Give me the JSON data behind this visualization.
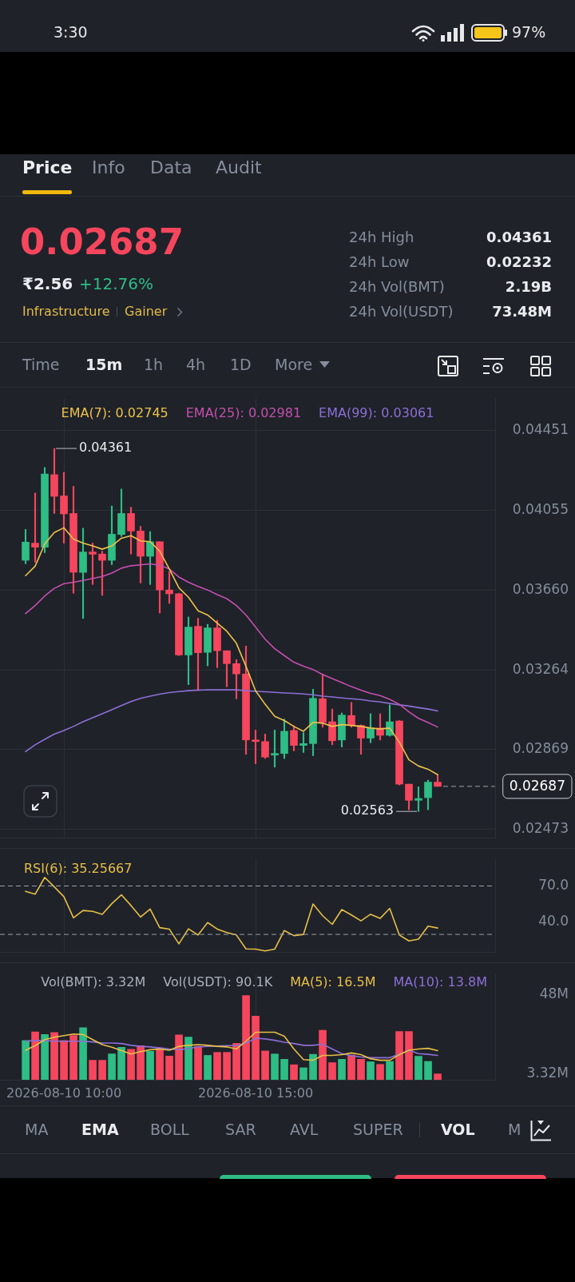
{
  "chart_data": [
    {
      "type": "other",
      "annotations": [
        "3:30",
        "97%",
        "Price",
        "Info",
        "Data",
        "Audit",
        "0.02687",
        "₹2.56",
        "+12.76%",
        "Infrastructure",
        "Gainer",
        "24h High",
        "0.04361",
        "24h Low",
        "0.02232",
        "24h Vol(BMT)",
        "2.19B",
        "24h Vol(USDT)",
        "73.48M",
        "Time",
        "15m",
        "1h",
        "4h",
        "1D",
        "More"
      ]
    },
    {
      "type": "candlestick",
      "x": [
        "2026-08-10T09:00",
        "2026-08-10T09:15",
        "2026-08-10T09:30",
        "2026-08-10T09:45",
        "2026-08-10T10:00",
        "2026-08-10T10:15",
        "2026-08-10T10:30",
        "2026-08-10T10:45",
        "2026-08-10T11:00",
        "2026-08-10T11:15",
        "2026-08-10T11:30",
        "2026-08-10T11:45",
        "2026-08-10T12:00",
        "2026-08-10T12:15",
        "2026-08-10T12:30",
        "2026-08-10T12:45",
        "2026-08-10T13:00",
        "2026-08-10T13:15",
        "2026-08-10T13:30",
        "2026-08-10T13:45",
        "2026-08-10T14:00",
        "2026-08-10T14:15",
        "2026-08-10T14:30",
        "2026-08-10T14:45",
        "2026-08-10T15:00",
        "2026-08-10T15:15",
        "2026-08-10T15:30",
        "2026-08-10T15:45",
        "2026-08-10T16:00",
        "2026-08-10T16:15",
        "2026-08-10T16:30",
        "2026-08-10T16:45",
        "2026-08-10T17:00",
        "2026-08-10T17:15",
        "2026-08-10T17:30",
        "2026-08-10T17:45",
        "2026-08-10T18:00",
        "2026-08-10T18:15",
        "2026-08-10T18:30",
        "2026-08-10T18:45",
        "2026-08-10T19:00",
        "2026-08-10T19:15",
        "2026-08-10T19:30",
        "2026-08-10T19:45"
      ],
      "ohlc": [
        [
          0.03807,
          0.0396,
          0.0379,
          0.03897
        ],
        [
          0.03892,
          0.0414,
          0.03798,
          0.03872
        ],
        [
          0.03872,
          0.04267,
          0.03845,
          0.04234
        ],
        [
          0.04231,
          0.04361,
          0.04039,
          0.04124
        ],
        [
          0.04126,
          0.04243,
          0.03892,
          0.04037
        ],
        [
          0.04039,
          0.04173,
          0.03644,
          0.03748
        ],
        [
          0.03747,
          0.03966,
          0.03519,
          0.03848
        ],
        [
          0.03848,
          0.03892,
          0.03687,
          0.03837
        ],
        [
          0.03838,
          0.03852,
          0.03633,
          0.03807
        ],
        [
          0.03807,
          0.04076,
          0.03785,
          0.03936
        ],
        [
          0.03935,
          0.0416,
          0.03925,
          0.04039
        ],
        [
          0.04039,
          0.0407,
          0.03838,
          0.03952
        ],
        [
          0.03952,
          0.03975,
          0.03695,
          0.03827
        ],
        [
          0.03827,
          0.03949,
          0.03687,
          0.03899
        ],
        [
          0.03899,
          0.03899,
          0.03546,
          0.0366
        ],
        [
          0.0366,
          0.03751,
          0.03593,
          0.03641
        ],
        [
          0.03641,
          0.03644,
          0.03335,
          0.03338
        ],
        [
          0.03338,
          0.03526,
          0.03191,
          0.03476
        ],
        [
          0.0348,
          0.0352,
          0.03161,
          0.03349
        ],
        [
          0.03351,
          0.0349,
          0.03284,
          0.03472
        ],
        [
          0.03472,
          0.0351,
          0.03275,
          0.03359
        ],
        [
          0.03359,
          0.03359,
          0.03181,
          0.03295
        ],
        [
          0.03295,
          0.03315,
          0.03121,
          0.03244
        ],
        [
          0.03244,
          0.03382,
          0.02846,
          0.02917
        ],
        [
          0.02917,
          0.02966,
          0.02799,
          0.02909
        ],
        [
          0.02909,
          0.02946,
          0.02825,
          0.02832
        ],
        [
          0.02842,
          0.02966,
          0.02782,
          0.0285
        ],
        [
          0.0285,
          0.0302,
          0.02825,
          0.0296
        ],
        [
          0.02964,
          0.02987,
          0.02863,
          0.0289
        ],
        [
          0.0289,
          0.02953,
          0.02855,
          0.02899
        ],
        [
          0.02899,
          0.03168,
          0.02839,
          0.03123
        ],
        [
          0.03121,
          0.03244,
          0.0298,
          0.03003
        ],
        [
          0.03007,
          0.0307,
          0.02893,
          0.02913
        ],
        [
          0.02917,
          0.03051,
          0.02882,
          0.0304
        ],
        [
          0.03038,
          0.03103,
          0.0298,
          0.02989
        ],
        [
          0.02989,
          0.02992,
          0.02846,
          0.02926
        ],
        [
          0.02926,
          0.03047,
          0.02903,
          0.02976
        ],
        [
          0.02976,
          0.03047,
          0.02917,
          0.0294
        ],
        [
          0.0294,
          0.03091,
          0.02936,
          0.03007
        ],
        [
          0.03011,
          0.03013,
          0.02694,
          0.02698
        ],
        [
          0.02698,
          0.02698,
          0.02571,
          0.02618
        ],
        [
          0.02618,
          0.02685,
          0.02563,
          0.02627
        ],
        [
          0.02631,
          0.02718,
          0.02571,
          0.02708
        ],
        [
          0.02708,
          0.02745,
          0.02687,
          0.02687
        ]
      ],
      "colors": [
        "#2ebd85",
        "#f6465d",
        "#2ebd85",
        "#f6465d",
        "#f6465d",
        "#f6465d",
        "#2ebd85",
        "#f6465d",
        "#f6465d",
        "#2ebd85",
        "#2ebd85",
        "#f6465d",
        "#f6465d",
        "#2ebd85",
        "#f6465d",
        "#f6465d",
        "#f6465d",
        "#2ebd85",
        "#f6465d",
        "#2ebd85",
        "#f6465d",
        "#f6465d",
        "#f6465d",
        "#f6465d",
        "#f6465d",
        "#f6465d",
        "#2ebd85",
        "#2ebd85",
        "#f6465d",
        "#2ebd85",
        "#2ebd85",
        "#f6465d",
        "#f6465d",
        "#2ebd85",
        "#f6465d",
        "#f6465d",
        "#2ebd85",
        "#f6465d",
        "#2ebd85",
        "#f6465d",
        "#f6465d",
        "#2ebd85",
        "#2ebd85",
        "#f6465d"
      ],
      "series": [
        {
          "type": "line",
          "name": "EMA(7): 0.02745",
          "color": "#edc24a",
          "values": [
            0.03731,
            0.03778,
            0.03888,
            0.03945,
            0.03968,
            0.03912,
            0.03892,
            0.03878,
            0.03862,
            0.03878,
            0.03916,
            0.03929,
            0.03903,
            0.03899,
            0.03852,
            0.03764,
            0.03671,
            0.03624,
            0.03557,
            0.03536,
            0.03496,
            0.03456,
            0.03396,
            0.03282,
            0.03161,
            0.03094,
            0.03034,
            0.03013,
            0.02984,
            0.0296,
            0.03004,
            0.03,
            0.02984,
            0.02993,
            0.02989,
            0.02984,
            0.02976,
            0.02971,
            0.02976,
            0.02906,
            0.02819,
            0.02788,
            0.02772,
            0.02745
          ]
        },
        {
          "type": "line",
          "name": "EMA(25): 0.02981",
          "color": "#c44fae",
          "values": [
            0.03543,
            0.03583,
            0.0363,
            0.03668,
            0.03691,
            0.03698,
            0.03707,
            0.03717,
            0.03727,
            0.03744,
            0.03768,
            0.0378,
            0.03784,
            0.03789,
            0.03782,
            0.03764,
            0.03724,
            0.03698,
            0.03677,
            0.0366,
            0.03637,
            0.03617,
            0.03583,
            0.03536,
            0.03476,
            0.03416,
            0.03369,
            0.03335,
            0.03302,
            0.03282,
            0.03266,
            0.03241,
            0.03221,
            0.03201,
            0.03181,
            0.03164,
            0.03148,
            0.03137,
            0.03118,
            0.03094,
            0.03056,
            0.03024,
            0.03003,
            0.02981
          ]
        },
        {
          "type": "line",
          "name": "EMA(99): 0.03061",
          "color": "#8c6fd6",
          "values": [
            0.02859,
            0.02893,
            0.0292,
            0.02946,
            0.02964,
            0.02984,
            0.03007,
            0.03027,
            0.03047,
            0.03067,
            0.03087,
            0.03107,
            0.03123,
            0.03134,
            0.03144,
            0.03152,
            0.03157,
            0.03161,
            0.03164,
            0.03165,
            0.03165,
            0.03165,
            0.03165,
            0.03161,
            0.03158,
            0.03156,
            0.03153,
            0.0315,
            0.03148,
            0.03145,
            0.03141,
            0.03134,
            0.0313,
            0.03125,
            0.03121,
            0.03117,
            0.0311,
            0.03105,
            0.03098,
            0.03091,
            0.03085,
            0.03077,
            0.0307,
            0.03061
          ]
        }
      ],
      "xlim": [
        "2026-08-10T08:20",
        "2026-08-10T21:15"
      ],
      "xticks": [
        {
          "value": "2026-08-10T10:00",
          "label": null
        },
        {
          "value": "2026-08-10T15:00",
          "label": null
        }
      ],
      "ylim": [
        0.0243,
        0.0461
      ],
      "yticks": [
        0.04451,
        0.04055,
        {
          "value": 0.0366,
          "label": "0.03660"
        },
        0.03264,
        0.02869,
        0.02473
      ],
      "tick_labels": "y",
      "grid": true,
      "legend": "top",
      "annotations": [
        {
          "text": "0.04361",
          "x": "2026-08-10T09:45",
          "y": 0.04361
        },
        {
          "text": "0.02563",
          "x": "2026-08-10T19:15",
          "y": 0.02563
        }
      ],
      "ref_lines": [
        {
          "axis": "y",
          "value": 0.02687,
          "label": "0.02687",
          "line_style": "dashed",
          "color": "#9aa0a8"
        }
      ]
    },
    {
      "type": "line",
      "x": [
        "2026-08-10T09:00",
        "2026-08-10T09:15",
        "2026-08-10T09:30",
        "2026-08-10T09:45",
        "2026-08-10T10:00",
        "2026-08-10T10:15",
        "2026-08-10T10:30",
        "2026-08-10T10:45",
        "2026-08-10T11:00",
        "2026-08-10T11:15",
        "2026-08-10T11:30",
        "2026-08-10T11:45",
        "2026-08-10T12:00",
        "2026-08-10T12:15",
        "2026-08-10T12:30",
        "2026-08-10T12:45",
        "2026-08-10T13:00",
        "2026-08-10T13:15",
        "2026-08-10T13:30",
        "2026-08-10T13:45",
        "2026-08-10T14:00",
        "2026-08-10T14:15",
        "2026-08-10T14:30",
        "2026-08-10T14:45",
        "2026-08-10T15:00",
        "2026-08-10T15:15",
        "2026-08-10T15:30",
        "2026-08-10T15:45",
        "2026-08-10T16:00",
        "2026-08-10T16:15",
        "2026-08-10T16:30",
        "2026-08-10T16:45",
        "2026-08-10T17:00",
        "2026-08-10T17:15",
        "2026-08-10T17:30",
        "2026-08-10T17:45",
        "2026-08-10T18:00",
        "2026-08-10T18:15",
        "2026-08-10T18:30",
        "2026-08-10T18:45",
        "2026-08-10T19:00",
        "2026-08-10T19:15",
        "2026-08-10T19:30",
        "2026-08-10T19:45"
      ],
      "series": [
        {
          "name": "RSI(6): 35.25667",
          "color": "#e7bf46",
          "values": [
            65.6,
            63.2,
            77.1,
            69.3,
            61.2,
            43.7,
            49.8,
            49.0,
            46.6,
            55.4,
            62.7,
            53.9,
            44.4,
            51.0,
            35.6,
            34.4,
            22.2,
            34.6,
            29.5,
            39.8,
            34.4,
            31.5,
            29.5,
            18.0,
            17.8,
            16.3,
            17.8,
            33.2,
            29.0,
            30.0,
            55.1,
            45.4,
            38.3,
            50.5,
            46.1,
            41.2,
            46.6,
            43.2,
            51.5,
            29.5,
            24.6,
            26.1,
            36.8,
            35.25667
          ]
        }
      ],
      "xlim": [
        "2026-08-10T08:20",
        "2026-08-10T21:15"
      ],
      "xticks": [
        {
          "value": "2026-08-10T10:00",
          "label": null
        },
        {
          "value": "2026-08-10T15:00",
          "label": null
        }
      ],
      "ylim": [
        15,
        92
      ],
      "yticks": [
        {
          "value": 70,
          "label": "70.0"
        },
        {
          "value": 40,
          "label": "40.0"
        }
      ],
      "tick_labels": "y",
      "grid": "x",
      "legend": "top left",
      "ref_lines": [
        {
          "axis": "y",
          "value": 70,
          "line_style": "dashed",
          "color": "#9aa0a8"
        },
        {
          "axis": "y",
          "value": 30,
          "line_style": "dashed",
          "color": "#9aa0a8"
        }
      ]
    },
    {
      "type": "bar",
      "x": [
        "2026-08-10T09:00",
        "2026-08-10T09:15",
        "2026-08-10T09:30",
        "2026-08-10T09:45",
        "2026-08-10T10:00",
        "2026-08-10T10:15",
        "2026-08-10T10:30",
        "2026-08-10T10:45",
        "2026-08-10T11:00",
        "2026-08-10T11:15",
        "2026-08-10T11:30",
        "2026-08-10T11:45",
        "2026-08-10T12:00",
        "2026-08-10T12:15",
        "2026-08-10T12:30",
        "2026-08-10T12:45",
        "2026-08-10T13:00",
        "2026-08-10T13:15",
        "2026-08-10T13:30",
        "2026-08-10T13:45",
        "2026-08-10T14:00",
        "2026-08-10T14:15",
        "2026-08-10T14:30",
        "2026-08-10T14:45",
        "2026-08-10T15:00",
        "2026-08-10T15:15",
        "2026-08-10T15:30",
        "2026-08-10T15:45",
        "2026-08-10T16:00",
        "2026-08-10T16:15",
        "2026-08-10T16:30",
        "2026-08-10T16:45",
        "2026-08-10T17:00",
        "2026-08-10T17:15",
        "2026-08-10T17:30",
        "2026-08-10T17:45",
        "2026-08-10T18:00",
        "2026-08-10T18:15",
        "2026-08-10T18:30",
        "2026-08-10T18:45",
        "2026-08-10T19:00",
        "2026-08-10T19:15",
        "2026-08-10T19:30",
        "2026-08-10T19:45"
      ],
      "series": [
        {
          "type": "bar",
          "colors": [
            "#2ebd85",
            "#f6465d",
            "#2ebd85",
            "#f6465d",
            "#f6465d",
            "#f6465d",
            "#2ebd85",
            "#f6465d",
            "#f6465d",
            "#2ebd85",
            "#2ebd85",
            "#f6465d",
            "#f6465d",
            "#2ebd85",
            "#f6465d",
            "#f6465d",
            "#f6465d",
            "#2ebd85",
            "#f6465d",
            "#2ebd85",
            "#f6465d",
            "#f6465d",
            "#f6465d",
            "#f6465d",
            "#f6465d",
            "#f6465d",
            "#2ebd85",
            "#2ebd85",
            "#f6465d",
            "#2ebd85",
            "#2ebd85",
            "#f6465d",
            "#f6465d",
            "#2ebd85",
            "#f6465d",
            "#f6465d",
            "#2ebd85",
            "#f6465d",
            "#2ebd85",
            "#f6465d",
            "#f6465d",
            "#2ebd85",
            "#2ebd85",
            "#f6465d"
          ],
          "values": [
            22.2,
            27.1,
            25.6,
            26.7,
            22.2,
            25.0,
            29.4,
            11.0,
            11.0,
            14.6,
            18.4,
            17.2,
            19.3,
            16.1,
            18.0,
            13.4,
            25.4,
            24.1,
            18.9,
            13.8,
            15.5,
            15.5,
            20.6,
            47.6,
            36.0,
            16.3,
            14.6,
            11.6,
            8.5,
            6.8,
            14.4,
            28.0,
            9.7,
            11.6,
            14.0,
            11.6,
            10.2,
            8.7,
            10.4,
            27.3,
            27.3,
            13.3,
            10.4,
            3.32
          ]
        },
        {
          "type": "line",
          "name": "MA(5): 16.5M",
          "color": "#e7bf46",
          "values": [
            16.7,
            19.3,
            22.7,
            24.1,
            25.0,
            25.9,
            25.6,
            22.7,
            19.9,
            18.4,
            16.5,
            14.6,
            15.9,
            17.0,
            17.4,
            16.7,
            18.9,
            19.5,
            19.9,
            19.5,
            18.9,
            18.6,
            17.4,
            21.8,
            26.9,
            26.9,
            26.9,
            24.6,
            17.4,
            11.4,
            11.0,
            13.8,
            13.8,
            14.2,
            15.2,
            14.2,
            11.9,
            11.0,
            11.0,
            14.2,
            16.7,
            17.4,
            17.8,
            16.5
          ]
        },
        {
          "type": "line",
          "name": "MA(10): 13.8M",
          "color": "#8c6fd6",
          "values": [
            21.8,
            22.2,
            22.2,
            21.8,
            21.8,
            21.8,
            21.8,
            21.4,
            20.8,
            20.8,
            20.5,
            19.5,
            18.9,
            18.6,
            18.0,
            17.4,
            17.0,
            17.6,
            18.6,
            18.9,
            19.1,
            19.3,
            19.3,
            20.8,
            23.5,
            23.1,
            22.3,
            21.2,
            20.5,
            19.5,
            19.5,
            20.1,
            17.4,
            14.8,
            13.6,
            12.9,
            12.5,
            12.5,
            12.5,
            14.4,
            16.7,
            14.8,
            14.4,
            13.8
          ]
        }
      ],
      "xlim": [
        "2026-08-10T08:20",
        "2026-08-10T21:15"
      ],
      "xticks": [
        {
          "value": "2026-08-10T10:00",
          "label": "2026-08-10 10:00"
        },
        {
          "value": "2026-08-10T15:00",
          "label": "2026-08-10 15:00"
        }
      ],
      "ylim": [
        0,
        60
      ],
      "yticks": [
        {
          "value": 48,
          "label": "48M"
        },
        {
          "value": 3.32,
          "label": "3.32M"
        }
      ],
      "grid": "x",
      "legend": "top right",
      "annotations": [
        "Vol(BMT): 3.32M",
        "Vol(USDT): 90.1K"
      ]
    },
    {
      "type": "other",
      "annotations": [
        "MA",
        "EMA",
        "BOLL",
        "SAR",
        "AVL",
        "SUPER",
        "VOL",
        "M"
      ]
    }
  ]
}
